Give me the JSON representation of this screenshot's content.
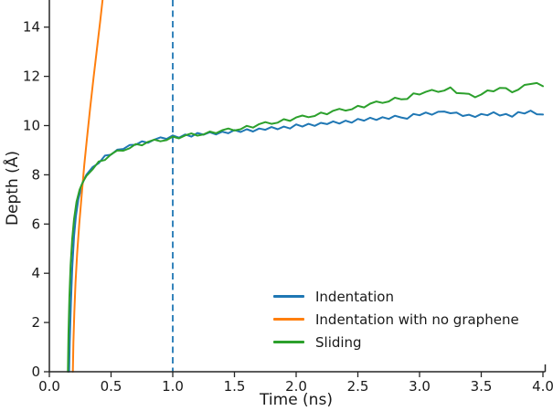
{
  "chart_data": {
    "type": "line",
    "title": "",
    "xlabel": "Time (ns)",
    "ylabel": "Depth (Å)",
    "xlim": [
      0.0,
      4.0
    ],
    "ylim": [
      0.0,
      15.1
    ],
    "xticks": [
      0.0,
      0.5,
      1.0,
      1.5,
      2.0,
      2.5,
      3.0,
      3.5,
      4.0
    ],
    "xtick_labels": [
      "0.0",
      "0.5",
      "1.0",
      "1.5",
      "2.0",
      "2.5",
      "3.0",
      "3.5",
      "4.0"
    ],
    "yticks": [
      0,
      2,
      4,
      6,
      8,
      10,
      12,
      14
    ],
    "ytick_labels": [
      "0",
      "2",
      "4",
      "6",
      "8",
      "10",
      "12",
      "14"
    ],
    "grid": false,
    "legend_position": "lower-right-inside",
    "axis_color": "#262626",
    "text_color": "#1a1a1a",
    "vline": {
      "x": 1.0,
      "style": "dashed",
      "color": "#1f77b4",
      "y_from": 0.0,
      "y_to": 15.1
    },
    "series": [
      {
        "name": "Indentation",
        "color": "#1f77b4",
        "points": [
          [
            0.16,
            0
          ],
          [
            0.165,
            1.2
          ],
          [
            0.175,
            2.8
          ],
          [
            0.185,
            4.2
          ],
          [
            0.2,
            5.5
          ],
          [
            0.215,
            6.3
          ],
          [
            0.235,
            7.0
          ],
          [
            0.26,
            7.5
          ],
          [
            0.28,
            7.8
          ],
          [
            0.3,
            8.0
          ],
          [
            0.35,
            8.31
          ],
          [
            0.4,
            8.47
          ],
          [
            0.45,
            8.78
          ],
          [
            0.5,
            8.82
          ],
          [
            0.55,
            9.02
          ],
          [
            0.6,
            9.05
          ],
          [
            0.65,
            9.21
          ],
          [
            0.7,
            9.22
          ],
          [
            0.75,
            9.36
          ],
          [
            0.8,
            9.3
          ],
          [
            0.85,
            9.43
          ],
          [
            0.9,
            9.52
          ],
          [
            0.95,
            9.46
          ],
          [
            1.0,
            9.6
          ],
          [
            1.05,
            9.51
          ],
          [
            1.1,
            9.64
          ],
          [
            1.15,
            9.55
          ],
          [
            1.2,
            9.7
          ],
          [
            1.25,
            9.63
          ],
          [
            1.3,
            9.73
          ],
          [
            1.35,
            9.64
          ],
          [
            1.4,
            9.75
          ],
          [
            1.45,
            9.69
          ],
          [
            1.5,
            9.82
          ],
          [
            1.55,
            9.74
          ],
          [
            1.6,
            9.85
          ],
          [
            1.65,
            9.76
          ],
          [
            1.7,
            9.88
          ],
          [
            1.75,
            9.83
          ],
          [
            1.8,
            9.94
          ],
          [
            1.85,
            9.85
          ],
          [
            1.9,
            9.96
          ],
          [
            1.95,
            9.88
          ],
          [
            2.0,
            10.05
          ],
          [
            2.05,
            9.96
          ],
          [
            2.1,
            10.07
          ],
          [
            2.15,
            9.99
          ],
          [
            2.2,
            10.11
          ],
          [
            2.25,
            10.06
          ],
          [
            2.3,
            10.17
          ],
          [
            2.35,
            10.08
          ],
          [
            2.4,
            10.2
          ],
          [
            2.45,
            10.12
          ],
          [
            2.5,
            10.27
          ],
          [
            2.55,
            10.2
          ],
          [
            2.6,
            10.32
          ],
          [
            2.65,
            10.23
          ],
          [
            2.7,
            10.34
          ],
          [
            2.75,
            10.27
          ],
          [
            2.8,
            10.4
          ],
          [
            2.85,
            10.33
          ],
          [
            2.9,
            10.28
          ],
          [
            2.95,
            10.47
          ],
          [
            3.0,
            10.42
          ],
          [
            3.05,
            10.53
          ],
          [
            3.1,
            10.44
          ],
          [
            3.15,
            10.56
          ],
          [
            3.2,
            10.57
          ],
          [
            3.25,
            10.5
          ],
          [
            3.3,
            10.53
          ],
          [
            3.35,
            10.39
          ],
          [
            3.4,
            10.44
          ],
          [
            3.45,
            10.35
          ],
          [
            3.5,
            10.47
          ],
          [
            3.55,
            10.42
          ],
          [
            3.6,
            10.54
          ],
          [
            3.65,
            10.41
          ],
          [
            3.7,
            10.47
          ],
          [
            3.75,
            10.36
          ],
          [
            3.8,
            10.55
          ],
          [
            3.85,
            10.49
          ],
          [
            3.9,
            10.61
          ],
          [
            3.95,
            10.46
          ],
          [
            4.0,
            10.45
          ]
        ]
      },
      {
        "name": "Indentation with no graphene",
        "color": "#ff7f0e",
        "points": [
          [
            0.19,
            0
          ],
          [
            0.195,
            1.2
          ],
          [
            0.202,
            2.4
          ],
          [
            0.212,
            3.6
          ],
          [
            0.225,
            4.8
          ],
          [
            0.242,
            6.0
          ],
          [
            0.262,
            7.2
          ],
          [
            0.283,
            8.4
          ],
          [
            0.305,
            9.5
          ],
          [
            0.33,
            10.7
          ],
          [
            0.357,
            11.9
          ],
          [
            0.385,
            13.1
          ],
          [
            0.413,
            14.3
          ],
          [
            0.44,
            15.5
          ]
        ]
      },
      {
        "name": "Sliding",
        "color": "#2ca02c",
        "points": [
          [
            0.15,
            0
          ],
          [
            0.155,
            1.5
          ],
          [
            0.162,
            3.0
          ],
          [
            0.172,
            4.3
          ],
          [
            0.185,
            5.4
          ],
          [
            0.2,
            6.2
          ],
          [
            0.22,
            6.9
          ],
          [
            0.245,
            7.4
          ],
          [
            0.27,
            7.7
          ],
          [
            0.3,
            7.95
          ],
          [
            0.35,
            8.22
          ],
          [
            0.4,
            8.54
          ],
          [
            0.45,
            8.6
          ],
          [
            0.5,
            8.83
          ],
          [
            0.55,
            8.99
          ],
          [
            0.6,
            8.98
          ],
          [
            0.65,
            9.08
          ],
          [
            0.7,
            9.25
          ],
          [
            0.75,
            9.2
          ],
          [
            0.8,
            9.34
          ],
          [
            0.85,
            9.43
          ],
          [
            0.9,
            9.36
          ],
          [
            0.95,
            9.41
          ],
          [
            1.0,
            9.55
          ],
          [
            1.05,
            9.48
          ],
          [
            1.1,
            9.6
          ],
          [
            1.15,
            9.68
          ],
          [
            1.2,
            9.59
          ],
          [
            1.25,
            9.64
          ],
          [
            1.3,
            9.76
          ],
          [
            1.35,
            9.69
          ],
          [
            1.4,
            9.81
          ],
          [
            1.45,
            9.88
          ],
          [
            1.5,
            9.8
          ],
          [
            1.55,
            9.85
          ],
          [
            1.6,
            9.99
          ],
          [
            1.65,
            9.92
          ],
          [
            1.7,
            10.06
          ],
          [
            1.75,
            10.14
          ],
          [
            1.8,
            10.07
          ],
          [
            1.85,
            10.12
          ],
          [
            1.9,
            10.26
          ],
          [
            1.95,
            10.19
          ],
          [
            2.0,
            10.33
          ],
          [
            2.05,
            10.41
          ],
          [
            2.1,
            10.34
          ],
          [
            2.15,
            10.39
          ],
          [
            2.2,
            10.53
          ],
          [
            2.25,
            10.46
          ],
          [
            2.3,
            10.6
          ],
          [
            2.35,
            10.68
          ],
          [
            2.4,
            10.61
          ],
          [
            2.45,
            10.66
          ],
          [
            2.5,
            10.8
          ],
          [
            2.55,
            10.74
          ],
          [
            2.6,
            10.89
          ],
          [
            2.65,
            10.98
          ],
          [
            2.7,
            10.92
          ],
          [
            2.75,
            10.98
          ],
          [
            2.8,
            11.13
          ],
          [
            2.85,
            11.07
          ],
          [
            2.9,
            11.08
          ],
          [
            2.95,
            11.31
          ],
          [
            3.0,
            11.26
          ],
          [
            3.05,
            11.37
          ],
          [
            3.1,
            11.45
          ],
          [
            3.15,
            11.37
          ],
          [
            3.2,
            11.42
          ],
          [
            3.25,
            11.55
          ],
          [
            3.3,
            11.32
          ],
          [
            3.35,
            11.31
          ],
          [
            3.4,
            11.29
          ],
          [
            3.45,
            11.15
          ],
          [
            3.5,
            11.26
          ],
          [
            3.55,
            11.43
          ],
          [
            3.6,
            11.39
          ],
          [
            3.65,
            11.53
          ],
          [
            3.7,
            11.52
          ],
          [
            3.75,
            11.35
          ],
          [
            3.8,
            11.46
          ],
          [
            3.85,
            11.65
          ],
          [
            3.9,
            11.69
          ],
          [
            3.95,
            11.73
          ],
          [
            4.0,
            11.6
          ]
        ]
      }
    ]
  }
}
